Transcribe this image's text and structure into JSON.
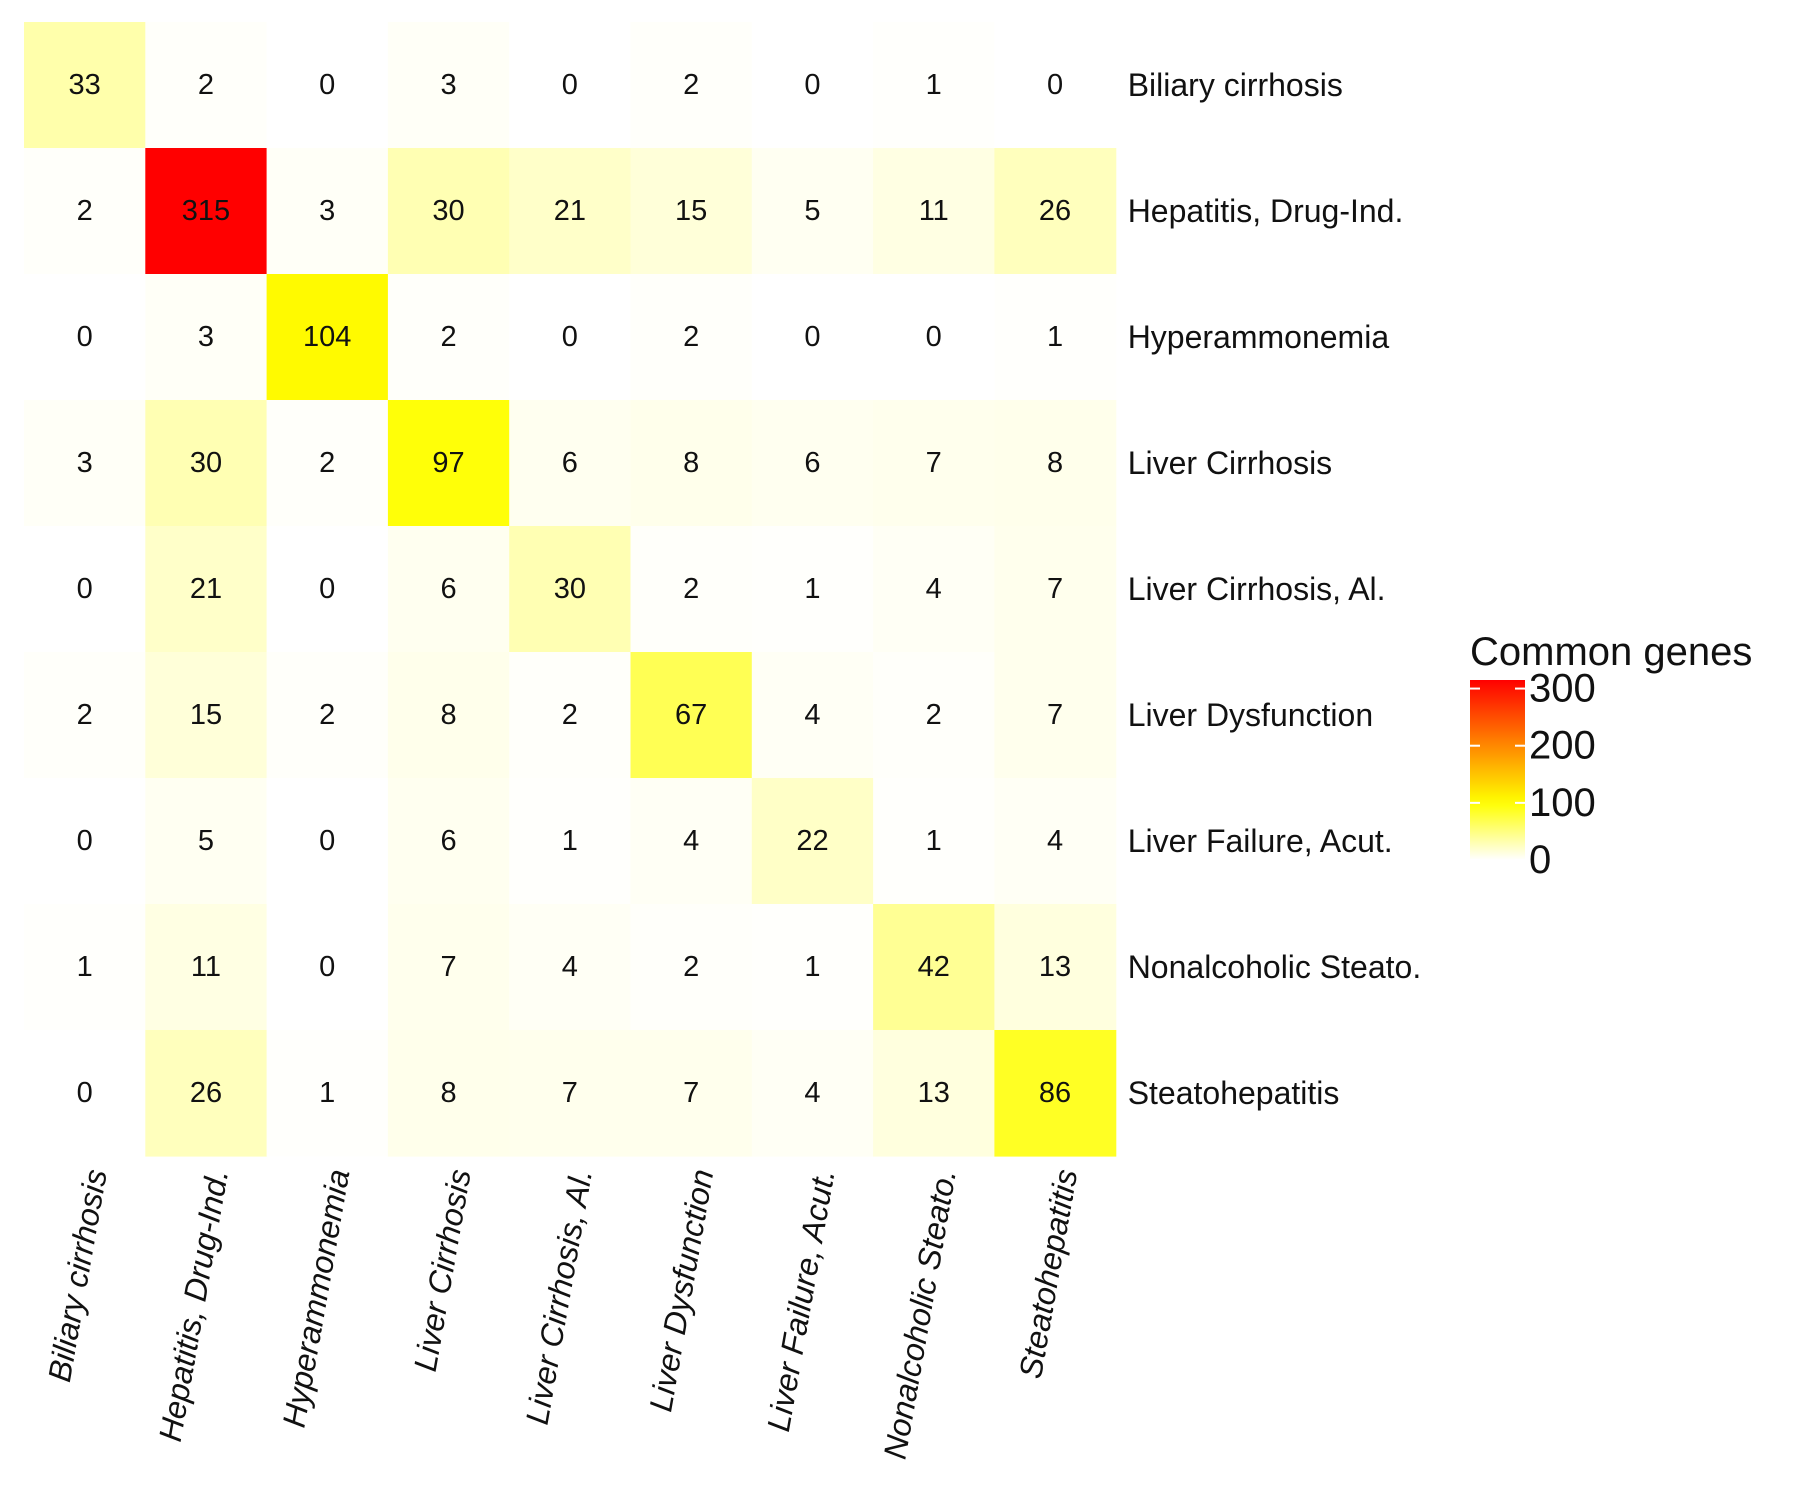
{
  "chart_data": {
    "type": "heatmap",
    "rows": [
      "Biliary cirrhosis",
      "Hepatitis, Drug-Ind.",
      "Hyperammonemia",
      "Liver Cirrhosis",
      "Liver Cirrhosis, Al.",
      "Liver Dysfunction",
      "Liver Failure, Acut.",
      "Nonalcoholic Steato.",
      "Steatohepatitis"
    ],
    "columns": [
      "Biliary cirrhosis",
      "Hepatitis, Drug-Ind.",
      "Hyperammonemia",
      "Liver Cirrhosis",
      "Liver Cirrhosis, Al.",
      "Liver Dysfunction",
      "Liver Failure, Acut.",
      "Nonalcoholic Steato.",
      "Steatohepatitis"
    ],
    "values": [
      [
        33,
        2,
        0,
        3,
        0,
        2,
        0,
        1,
        0
      ],
      [
        2,
        315,
        3,
        30,
        21,
        15,
        5,
        11,
        26
      ],
      [
        0,
        3,
        104,
        2,
        0,
        2,
        0,
        0,
        1
      ],
      [
        3,
        30,
        2,
        97,
        6,
        8,
        6,
        7,
        8
      ],
      [
        0,
        21,
        0,
        6,
        30,
        2,
        1,
        4,
        7
      ],
      [
        2,
        15,
        2,
        8,
        2,
        67,
        4,
        2,
        7
      ],
      [
        0,
        5,
        0,
        6,
        1,
        4,
        22,
        1,
        4
      ],
      [
        1,
        11,
        0,
        7,
        4,
        2,
        1,
        42,
        13
      ],
      [
        0,
        26,
        1,
        8,
        7,
        7,
        4,
        13,
        86
      ]
    ],
    "legend": {
      "title": "Common genes",
      "ticks": [
        300,
        200,
        100,
        0
      ],
      "range": [
        0,
        315
      ]
    },
    "colors": {
      "low": "#ffffff",
      "mid": "#ffff00",
      "mid_value": 100,
      "high": "#ff0000"
    }
  }
}
